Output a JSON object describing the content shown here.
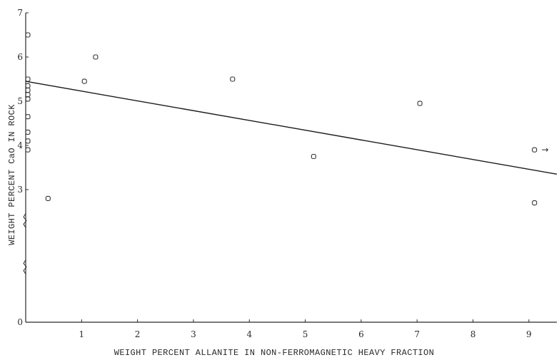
{
  "chart_data": {
    "type": "scatter",
    "xlabel": "WEIGHT PERCENT ALLANITE IN NON-FERROMAGNETIC HEAVY FRACTION",
    "ylabel": "WEIGHT PERCENT CaO IN ROCK",
    "xlim": [
      0,
      9.5
    ],
    "ylim": [
      0,
      7
    ],
    "x_ticks": [
      1,
      2,
      3,
      4,
      5,
      6,
      7,
      8,
      9
    ],
    "x_tick_labels": [
      "1",
      "2",
      "3",
      "4",
      "5",
      "6",
      "7",
      "8",
      "9"
    ],
    "y_ticks": [
      0,
      3,
      4,
      5,
      6,
      7
    ],
    "y_tick_labels": [
      "0",
      "3",
      "4",
      "5",
      "6",
      "7"
    ],
    "y_axis_break": true,
    "grid": false,
    "points": [
      {
        "x": 0.0,
        "y": 6.5
      },
      {
        "x": 0.0,
        "y": 5.5
      },
      {
        "x": 0.0,
        "y": 5.35
      },
      {
        "x": 0.0,
        "y": 5.25
      },
      {
        "x": 0.0,
        "y": 5.15
      },
      {
        "x": 0.0,
        "y": 5.05
      },
      {
        "x": 0.0,
        "y": 4.65
      },
      {
        "x": 0.0,
        "y": 4.3
      },
      {
        "x": 0.0,
        "y": 4.1
      },
      {
        "x": 0.0,
        "y": 3.9
      },
      {
        "x": 0.4,
        "y": 2.8
      },
      {
        "x": 1.05,
        "y": 5.45
      },
      {
        "x": 1.25,
        "y": 6.0
      },
      {
        "x": 3.7,
        "y": 5.5
      },
      {
        "x": 5.15,
        "y": 3.75
      },
      {
        "x": 7.05,
        "y": 4.95
      },
      {
        "x": 9.1,
        "y": 3.9
      },
      {
        "x": 9.1,
        "y": 2.7
      }
    ],
    "fit_line": {
      "x": [
        0,
        9.5
      ],
      "y": [
        5.45,
        3.35
      ]
    },
    "annotations": [
      {
        "text": "→",
        "x": 9.3,
        "y": 3.9
      }
    ]
  }
}
